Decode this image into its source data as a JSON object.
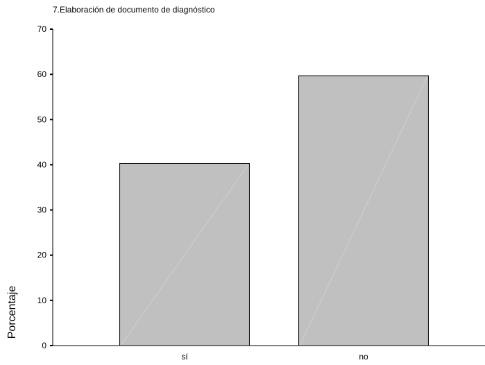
{
  "chart_data": {
    "type": "bar",
    "title": "7.Elaboración de documento de diagnóstico",
    "xlabel": "",
    "ylabel": "Porcentaje",
    "categories": [
      "sí",
      "no"
    ],
    "values": [
      40.3,
      59.7
    ],
    "ylim": [
      0,
      70
    ],
    "yticks": [
      0,
      10,
      20,
      30,
      40,
      50,
      60,
      70
    ],
    "grid": false,
    "bar_color": "#c0c0c0"
  }
}
